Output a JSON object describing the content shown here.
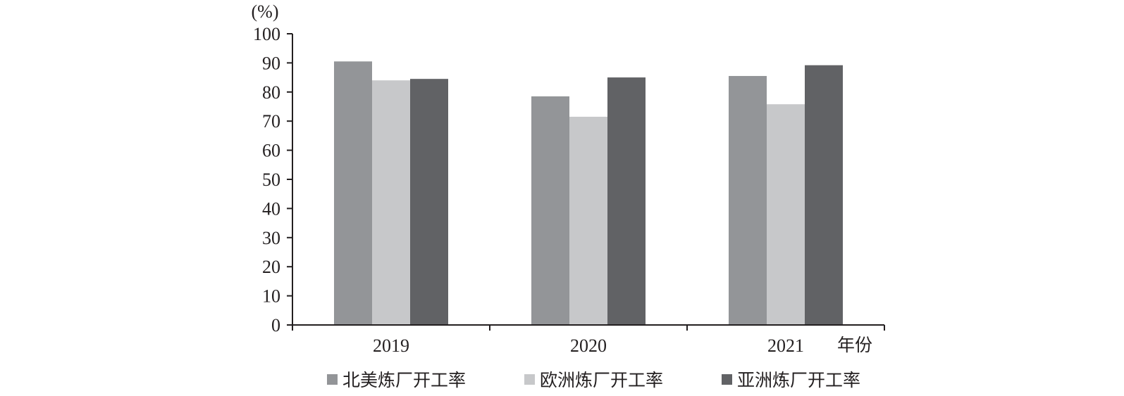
{
  "chart_data": {
    "type": "bar",
    "ylabel": "(%)",
    "xlabel": "年份",
    "ylim": [
      0,
      100
    ],
    "yticks": [
      0,
      10,
      20,
      30,
      40,
      50,
      60,
      70,
      80,
      90,
      100
    ],
    "categories": [
      "2019",
      "2020",
      "2021"
    ],
    "series": [
      {
        "name": "北美炼厂开工率",
        "color": "#939598",
        "values": [
          90.5,
          78.5,
          85.5
        ]
      },
      {
        "name": "欧洲炼厂开工率",
        "color": "#c7c8ca",
        "values": [
          84.0,
          71.5,
          75.8
        ]
      },
      {
        "name": "亚洲炼厂开工率",
        "color": "#616265",
        "values": [
          84.5,
          85.0,
          89.2
        ]
      }
    ],
    "legend_position": "bottom",
    "grid": false
  }
}
